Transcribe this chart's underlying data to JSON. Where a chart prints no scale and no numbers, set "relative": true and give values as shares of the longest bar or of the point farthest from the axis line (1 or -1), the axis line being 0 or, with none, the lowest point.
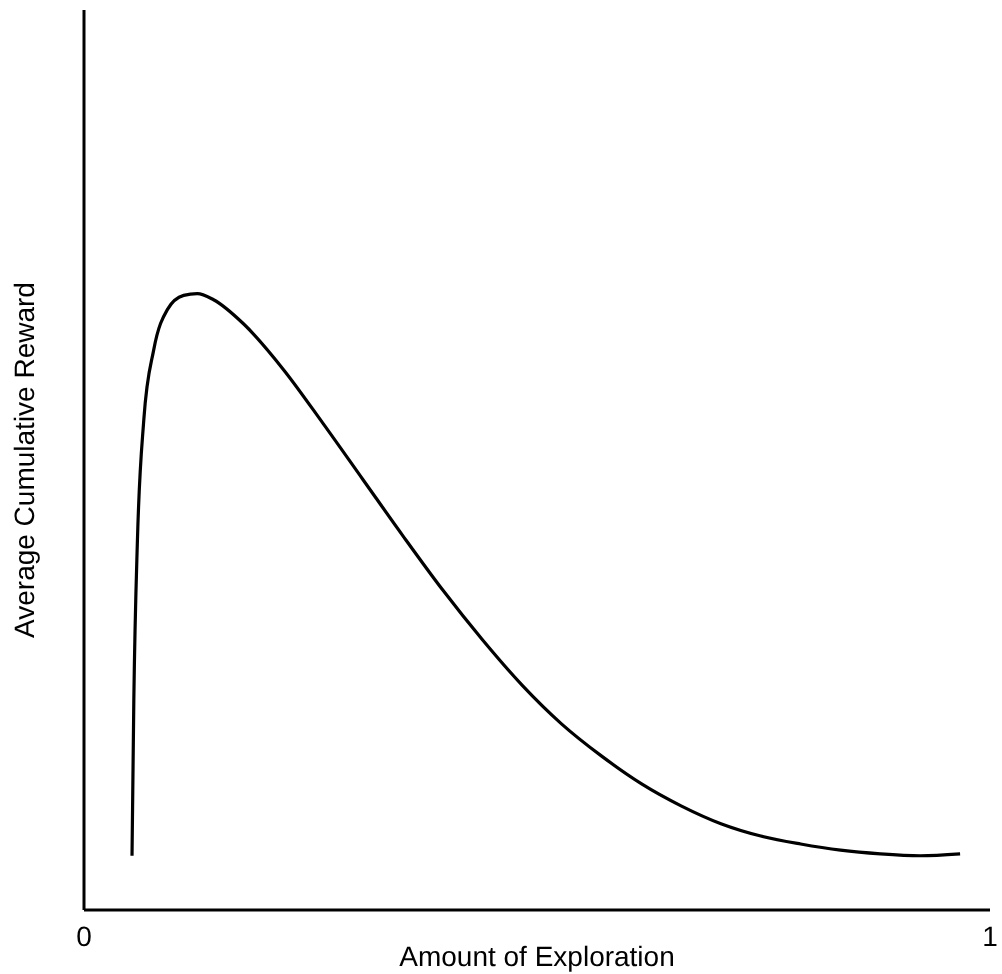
{
  "chart_data": {
    "type": "line",
    "xlabel": "Amount of Exploration",
    "ylabel": "Average Cumulative Reward",
    "relative": true,
    "xlim": [
      0,
      1
    ],
    "xticks": [
      0,
      1
    ],
    "grid": false,
    "legend": false,
    "marker": "none",
    "line_style": "solid",
    "series": [
      {
        "color": "#000000",
        "x": [
          0.053,
          0.055,
          0.059,
          0.066,
          0.077,
          0.092,
          0.11,
          0.125,
          0.143,
          0.176,
          0.22,
          0.264,
          0.308,
          0.352,
          0.396,
          0.44,
          0.484,
          0.527,
          0.571,
          0.615,
          0.659,
          0.703,
          0.747,
          0.791,
          0.835,
          0.879,
          0.923,
          0.967
        ],
        "values": [
          0.088,
          0.341,
          0.601,
          0.795,
          0.909,
          0.974,
          0.997,
          1,
          0.99,
          0.951,
          0.877,
          0.789,
          0.698,
          0.607,
          0.519,
          0.438,
          0.364,
          0.302,
          0.25,
          0.205,
          0.169,
          0.14,
          0.12,
          0.107,
          0.097,
          0.091,
          0.088,
          0.091
        ]
      }
    ]
  }
}
